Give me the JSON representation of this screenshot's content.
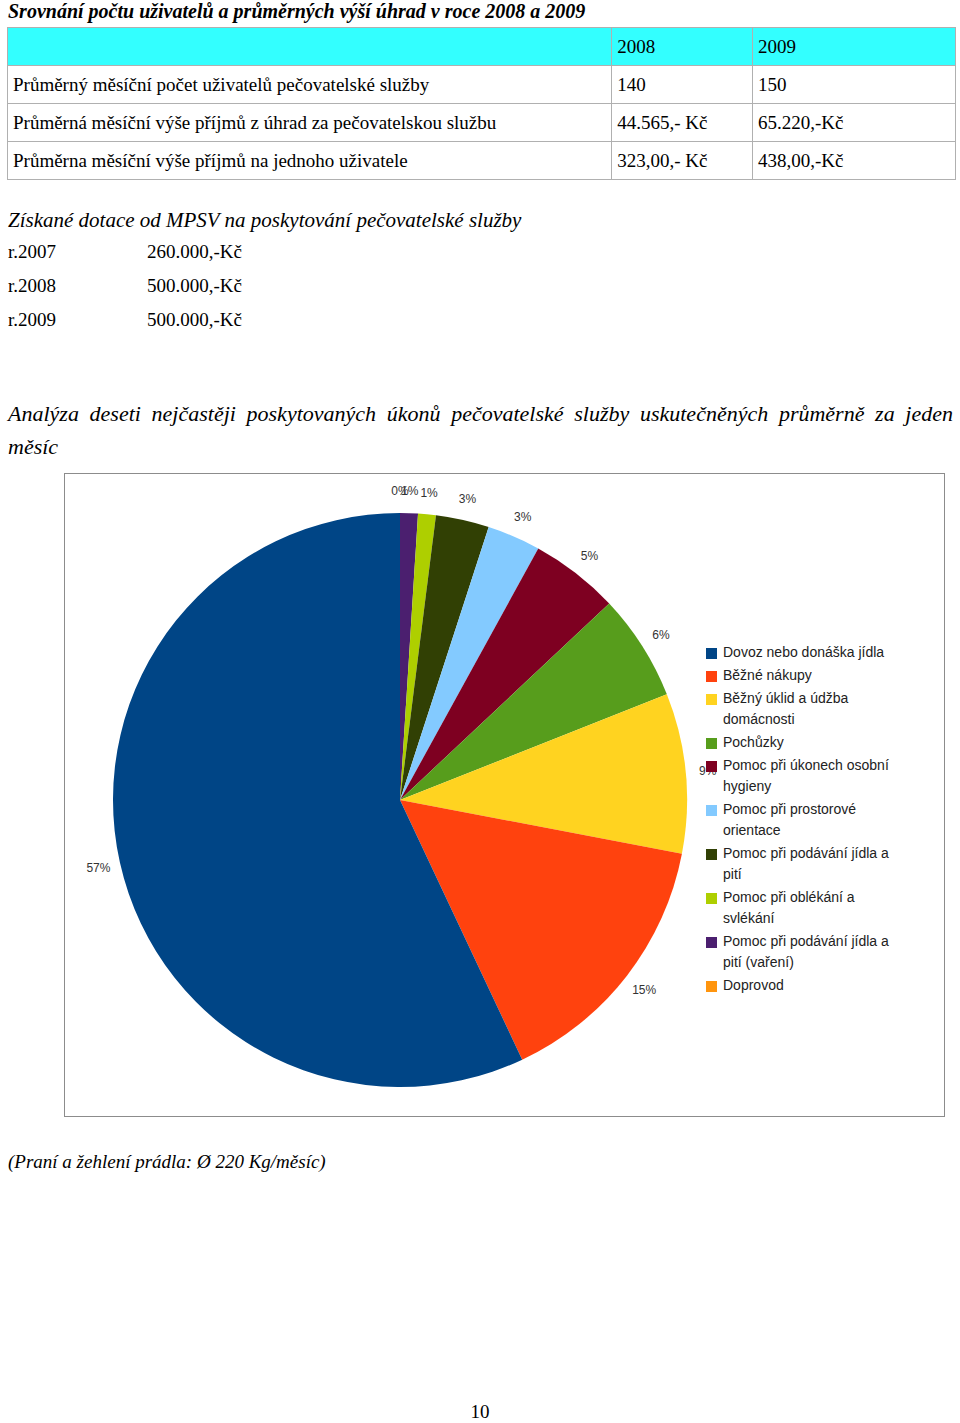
{
  "header": {
    "title": "Srovnání počtu uživatelů a průměrných výší úhrad v roce 2008 a 2009"
  },
  "table": {
    "header": [
      "2008",
      "2009"
    ],
    "rows": [
      [
        "Průměrný měsíční počet uživatelů pečovatelské služby",
        "140",
        "150"
      ],
      [
        "Průměrná měsíční výše příjmů z úhrad za pečovatelskou službu",
        "44.565,- Kč",
        "65.220,-Kč"
      ],
      [
        "Průměrna měsíční výše příjmů na jednoho uživatele",
        "323,00,- Kč",
        "438,00,-Kč"
      ]
    ]
  },
  "subsidies": {
    "title": "Získané dotace od MPSV na poskytování pečovatelské služby",
    "rows": [
      [
        "r.2007",
        "260.000,-Kč"
      ],
      [
        "r.2008",
        "500.000,-Kč"
      ],
      [
        "r.2009",
        "500.000,-Kč"
      ]
    ]
  },
  "analysis": {
    "title": "Analýza deseti nejčastěji poskytovaných úkonů pečovatelské služby uskutečněných průměrně za jeden měsíc"
  },
  "chart_data": {
    "type": "pie",
    "categories": [
      "Dovoz nebo donáška jídla",
      "Běžné nákupy",
      "Běžný úklid a údžba domácnosti",
      "Pochůzky",
      "Pomoc při úkonech osobní hygieny",
      "Pomoc při prostorové orientace",
      "Pomoc při podávání jídla a pití",
      "Pomoc při oblékání a svlékání",
      "Pomoc při podávání jídla a pití (vaření)",
      "Doprovod"
    ],
    "values": [
      57,
      15,
      9,
      6,
      5,
      3,
      3,
      1,
      1,
      0
    ],
    "value_labels": [
      "57%",
      "15%",
      "9%",
      "6%",
      "5%",
      "3%",
      "3%",
      "1%",
      "1%",
      "0%"
    ],
    "colors": [
      "#004586",
      "#ff420e",
      "#ffd320",
      "#579d1c",
      "#7e0021",
      "#83caff",
      "#314004",
      "#aecf00",
      "#4b1f6f",
      "#ff950e"
    ],
    "data_labels": true,
    "legend": "right"
  },
  "note": "(Praní a žehlení prádla: Ø 220 Kg/měsíc)",
  "page_number": "10"
}
